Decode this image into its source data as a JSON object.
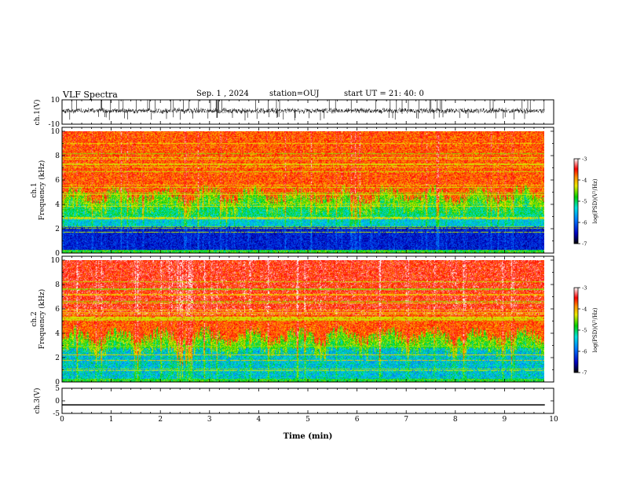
{
  "header": {
    "title": "VLF Spectra",
    "date": "Sep. 1 , 2024",
    "station": "station=OUJ",
    "start": "start UT = 21: 40: 0"
  },
  "chart_data": [
    {
      "type": "line",
      "panel": "ch1-waveform",
      "ylabel": "ch.1(V)",
      "ylim": [
        -10,
        10
      ],
      "yticks": [
        10,
        -10
      ],
      "xlim": [
        0,
        10
      ],
      "xlabel": ""
    },
    {
      "type": "heatmap",
      "panel": "ch1-spectrogram",
      "ylabel": "ch.1\nFrequency (kHz)",
      "ylim": [
        0,
        10
      ],
      "yticks": [
        0,
        2,
        4,
        6,
        8,
        10
      ],
      "xlim": [
        0,
        10
      ],
      "colorbar": {
        "label": "log(PSD)(V²/Hz)",
        "range": [
          -7,
          -3
        ],
        "ticks": [
          -3,
          -4,
          -5,
          -6,
          -7
        ]
      }
    },
    {
      "type": "heatmap",
      "panel": "ch2-spectrogram",
      "ylabel": "ch.2\nFrequency (kHz)",
      "ylim": [
        0,
        10
      ],
      "yticks": [
        0,
        2,
        4,
        6,
        8,
        10
      ],
      "xlim": [
        0,
        10
      ],
      "colorbar": {
        "label": "log(PSD)(V²/Hz)",
        "range": [
          -7,
          -3
        ],
        "ticks": [
          -3,
          -4,
          -5,
          -6,
          -7
        ]
      }
    },
    {
      "type": "line",
      "panel": "ch3-waveform",
      "ylabel": "ch.3(V)",
      "ylim": [
        -5,
        5
      ],
      "yticks": [
        5,
        0,
        -5
      ],
      "series": [
        {
          "values": [
            -1.6,
            -1.6
          ]
        }
      ],
      "xlim": [
        0,
        10
      ],
      "xticks": [
        0,
        1,
        2,
        3,
        4,
        5,
        6,
        7,
        8,
        9,
        10
      ],
      "xlabel": "Time (min)"
    }
  ]
}
